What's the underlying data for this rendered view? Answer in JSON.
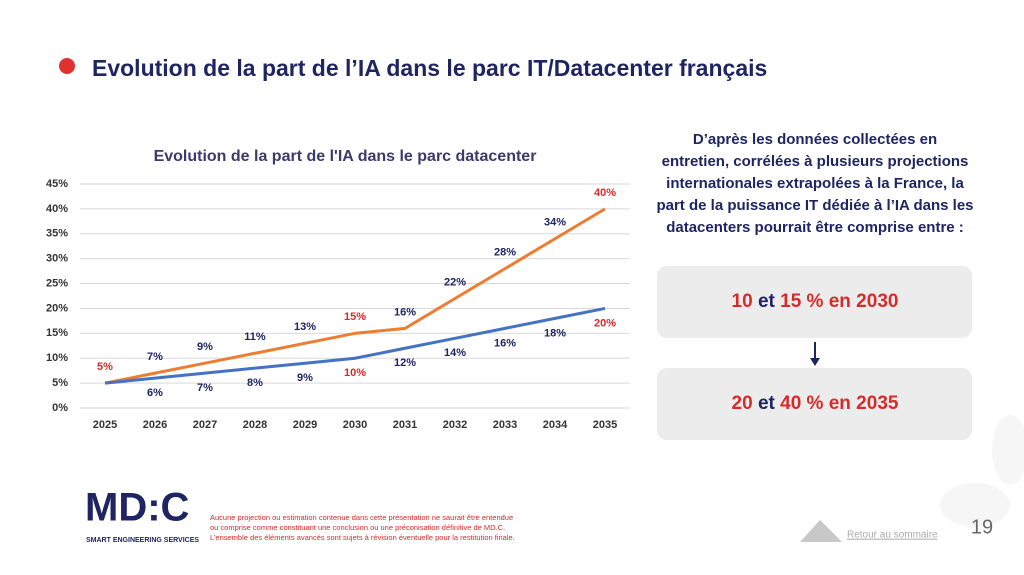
{
  "header": {
    "title": "Evolution de la part de l’IA dans le parc IT/Datacenter français"
  },
  "chart_data": {
    "type": "line",
    "title": "Evolution de la part de l'IA dans le parc datacenter",
    "categories": [
      "2025",
      "2026",
      "2027",
      "2028",
      "2029",
      "2030",
      "2031",
      "2032",
      "2033",
      "2034",
      "2035"
    ],
    "series": [
      {
        "color": "#ed7d31",
        "values": [
          5,
          7,
          9,
          11,
          13,
          15,
          16,
          22,
          28,
          34,
          40
        ],
        "value_labels": [
          "5%",
          "7%",
          "9%",
          "11%",
          "13%",
          "15%",
          "16%",
          "22%",
          "28%",
          "34%",
          "40%"
        ],
        "value_label_colors": [
          "#d62b2b",
          "#1f2463",
          "#1f2463",
          "#1f2463",
          "#1f2463",
          "#d62b2b",
          "#1f2463",
          "#1f2463",
          "#1f2463",
          "#1f2463",
          "#d62b2b"
        ]
      },
      {
        "color": "#4472c4",
        "values": [
          5,
          6,
          7,
          8,
          9,
          10,
          12,
          14,
          16,
          18,
          20
        ],
        "value_labels": [
          null,
          "6%",
          "7%",
          "8%",
          "9%",
          "10%",
          "12%",
          "14%",
          "16%",
          "18%",
          "20%"
        ],
        "value_label_colors": [
          "#1f2463",
          "#1f2463",
          "#1f2463",
          "#1f2463",
          "#1f2463",
          "#d62b2b",
          "#1f2463",
          "#1f2463",
          "#1f2463",
          "#1f2463",
          "#d62b2b"
        ]
      }
    ],
    "ylim": [
      0,
      45
    ],
    "yticks": [
      {
        "value": 0,
        "label": "0%"
      },
      {
        "value": 5,
        "label": "5%"
      },
      {
        "value": 10,
        "label": "10%"
      },
      {
        "value": 15,
        "label": "15%"
      },
      {
        "value": 20,
        "label": "20%"
      },
      {
        "value": 25,
        "label": "25%"
      },
      {
        "value": 30,
        "label": "30%"
      },
      {
        "value": 35,
        "label": "35%"
      },
      {
        "value": 40,
        "label": "40%"
      },
      {
        "value": 45,
        "label": "45%"
      }
    ],
    "grid": true
  },
  "intro": {
    "lines": [
      "D’après les données collectées en",
      "entretien, corrélées à plusieurs projections",
      "internationales extrapolées à la France, la",
      "part de la puissance IT dédiée à l’IA dans les",
      "datacenters pourrait être comprise entre :"
    ]
  },
  "boxes": [
    {
      "parts": [
        "10",
        " et ",
        "15 %",
        " en 2030"
      ]
    },
    {
      "parts": [
        "20",
        " et ",
        "40 %",
        " en 2035"
      ]
    }
  ],
  "footer": {
    "logo": "MD:C",
    "logo_subtitle": "SMART ENGINEERING SERVICES",
    "disclaimer": [
      "Aucune projection ou estimation contenue dans cette présentation ne saurait être entendue",
      "ou comprise comme constituant une conclusion ou une préconisation définitive de MD.C.",
      "L’ensemble des éléments avancés sont sujets à révision éventuelle pour la restitution finale."
    ],
    "link": "Retour au sommaire",
    "page_number": "19"
  }
}
